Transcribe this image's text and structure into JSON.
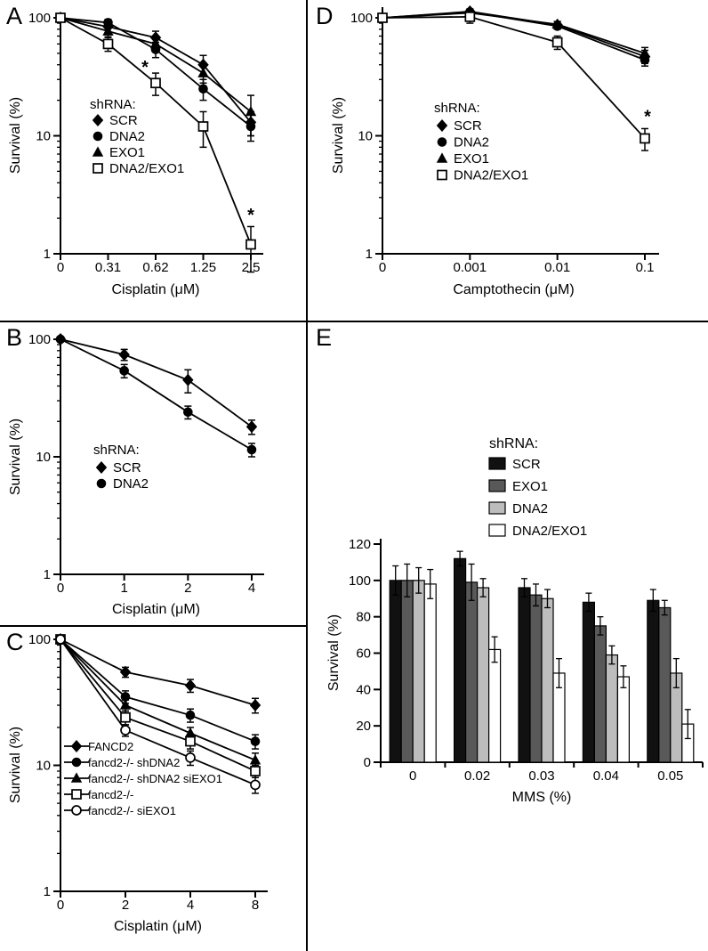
{
  "panels": [
    {
      "letter": "A"
    },
    {
      "letter": "B"
    },
    {
      "letter": "C"
    },
    {
      "letter": "D"
    },
    {
      "letter": "E"
    }
  ],
  "colors": {
    "axis": "#000000",
    "bar_scr": "#111111",
    "bar_exo1": "#595959",
    "bar_dna2": "#bdbdbd",
    "bar_dna2_exo1": "#ffffff"
  },
  "chart_data": [
    {
      "panel": "A",
      "type": "line",
      "yscale": "log",
      "ylim": [
        1,
        100
      ],
      "yticks": [
        100,
        10,
        1
      ],
      "ylabel": "Survival (%)",
      "xlabel": "Cisplatin (μM)",
      "xticklabels": [
        "0",
        "0.31",
        "0.62",
        "1.25",
        "2.5"
      ],
      "grid": false,
      "legend": {
        "title": "shRNA:",
        "position": "inside-left"
      },
      "series": [
        {
          "name": "SCR",
          "marker": "diamond",
          "values": [
            100,
            84,
            68,
            40,
            13
          ],
          "errors": [
            0,
            12,
            9,
            8,
            3
          ]
        },
        {
          "name": "DNA2",
          "marker": "circle",
          "values": [
            100,
            91,
            54,
            25,
            12
          ],
          "errors": [
            0,
            6,
            8,
            5,
            3
          ]
        },
        {
          "name": "EXO1",
          "marker": "triangle",
          "values": [
            100,
            77,
            60,
            34,
            16
          ],
          "errors": [
            0,
            8,
            8,
            6,
            6
          ]
        },
        {
          "name": "DNA2/EXO1",
          "marker": "square-open",
          "values": [
            100,
            60,
            28,
            12,
            1.2
          ],
          "errors": [
            0,
            8,
            6,
            4,
            0.5
          ]
        }
      ],
      "annotations": [
        {
          "text": "*",
          "xi": 2,
          "y": 34,
          "dx": -12
        },
        {
          "text": "*",
          "xi": 4,
          "y": 1.9,
          "dx": 0
        }
      ]
    },
    {
      "panel": "B",
      "type": "line",
      "yscale": "log",
      "ylim": [
        1,
        100
      ],
      "yticks": [
        100,
        10,
        1
      ],
      "ylabel": "Survival (%)",
      "xlabel": "Cisplatin (μM)",
      "xticklabels": [
        "0",
        "1",
        "2",
        "4"
      ],
      "grid": false,
      "legend": {
        "title": "shRNA:",
        "position": "inside-left"
      },
      "series": [
        {
          "name": "SCR",
          "marker": "diamond",
          "values": [
            100,
            74,
            45,
            18
          ],
          "errors": [
            0,
            8,
            10,
            2.5
          ]
        },
        {
          "name": "DNA2",
          "marker": "circle",
          "values": [
            100,
            54,
            24,
            11.5
          ],
          "errors": [
            0,
            7,
            3,
            1.5
          ]
        }
      ],
      "annotations": []
    },
    {
      "panel": "C",
      "type": "line",
      "yscale": "log",
      "ylim": [
        1,
        100
      ],
      "yticks": [
        100,
        10,
        1
      ],
      "ylabel": "Survival (%)",
      "xlabel": "Cisplatin (μM)",
      "xticklabels": [
        "0",
        "2",
        "4",
        "8"
      ],
      "grid": false,
      "legend": {
        "title": "",
        "position": "inside-lower-left",
        "line_through_marker": true
      },
      "series": [
        {
          "name": "FANCD2",
          "marker": "diamond",
          "values": [
            100,
            55,
            43,
            30
          ],
          "errors": [
            0,
            5,
            5,
            4
          ]
        },
        {
          "name": "fancd2-/- shDNA2",
          "marker": "circle",
          "values": [
            100,
            35,
            25,
            15.5
          ],
          "errors": [
            0,
            4,
            3,
            2
          ]
        },
        {
          "name": "fancd2-/- shDNA2 siEXO1",
          "marker": "triangle",
          "values": [
            100,
            30,
            18,
            11
          ],
          "errors": [
            0,
            3,
            2,
            1.5
          ]
        },
        {
          "name": "fancd2-/-",
          "marker": "square-open",
          "values": [
            100,
            24,
            15.5,
            9
          ],
          "errors": [
            0,
            3,
            2,
            1
          ]
        },
        {
          "name": "fancd2-/- siEXO1",
          "marker": "circle-open",
          "values": [
            100,
            19,
            11.5,
            7
          ],
          "errors": [
            0,
            2,
            1.5,
            1
          ]
        }
      ],
      "annotations": []
    },
    {
      "panel": "D",
      "type": "line",
      "yscale": "log",
      "ylim": [
        1,
        100
      ],
      "yticks": [
        100,
        10,
        1
      ],
      "ylabel": "Survival (%)",
      "xlabel": "Camptothecin (μM)",
      "xticklabels": [
        "0",
        "0.001",
        "0.01",
        "0.1"
      ],
      "grid": false,
      "legend": {
        "title": "shRNA:",
        "position": "inside-left"
      },
      "series": [
        {
          "name": "SCR",
          "marker": "diamond",
          "values": [
            100,
            113,
            87,
            47
          ],
          "errors": [
            0,
            6,
            6,
            6
          ]
        },
        {
          "name": "DNA2",
          "marker": "circle",
          "values": [
            100,
            112,
            85,
            44
          ],
          "errors": [
            0,
            5,
            5,
            5
          ]
        },
        {
          "name": "EXO1",
          "marker": "triangle",
          "values": [
            100,
            110,
            88,
            50
          ],
          "errors": [
            0,
            5,
            5,
            6
          ]
        },
        {
          "name": "DNA2/EXO1",
          "marker": "square-open",
          "values": [
            100,
            102,
            62,
            9.5
          ],
          "errors": [
            0,
            12,
            8,
            2
          ]
        }
      ],
      "annotations": [
        {
          "text": "*",
          "xi": 3,
          "y": 13,
          "dx": 3
        }
      ]
    },
    {
      "panel": "E",
      "type": "bar",
      "yscale": "linear",
      "ylim": [
        0,
        120
      ],
      "yticks": [
        0,
        20,
        40,
        60,
        80,
        100,
        120
      ],
      "ylabel": "Survival (%)",
      "xlabel": "MMS (%)",
      "categories": [
        "0",
        "0.02",
        "0.03",
        "0.04",
        "0.05"
      ],
      "grid": false,
      "legend": {
        "title": "shRNA:",
        "position": "above-plot"
      },
      "series": [
        {
          "name": "SCR",
          "color": "#111111",
          "values": [
            100,
            112,
            96,
            88,
            89
          ],
          "errors": [
            8,
            4,
            5,
            5,
            6
          ]
        },
        {
          "name": "EXO1",
          "color": "#595959",
          "values": [
            100,
            99,
            92,
            75,
            85
          ],
          "errors": [
            9,
            10,
            6,
            5,
            4
          ]
        },
        {
          "name": "DNA2",
          "color": "#bdbdbd",
          "values": [
            100,
            96,
            90,
            59,
            49
          ],
          "errors": [
            7,
            5,
            5,
            5,
            8
          ]
        },
        {
          "name": "DNA2/EXO1",
          "color": "#ffffff",
          "values": [
            98,
            62,
            49,
            47,
            21
          ],
          "errors": [
            8,
            7,
            8,
            6,
            8
          ]
        }
      ],
      "annotations": []
    }
  ]
}
